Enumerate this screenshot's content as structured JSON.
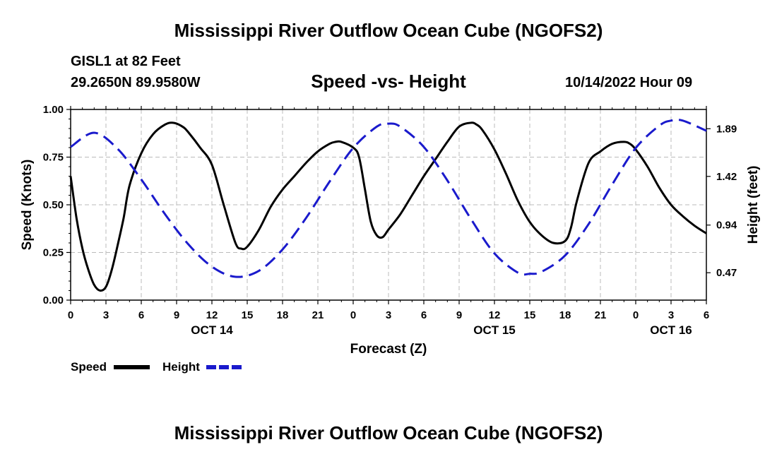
{
  "page": {
    "title_top": "Mississippi River Outflow Ocean Cube (NGOFS2)",
    "title_bottom": "Mississippi River Outflow Ocean Cube (NGOFS2)",
    "station": "GISL1 at 82 Feet",
    "latlon": "29.2650N  89.9580W",
    "subtitle": "Speed -vs- Height",
    "datetime": "10/14/2022 Hour 09"
  },
  "legend": {
    "speed_label": "Speed",
    "height_label": "Height"
  },
  "colors": {
    "speed": "#000000",
    "height": "#1a1acc",
    "grid": "#bbbbbb"
  },
  "chart_data": {
    "type": "line",
    "title": "Speed -vs- Height",
    "xlabel": "Forecast (Z)",
    "ylabel": "Speed (Knots)",
    "y2label": "Height (feet)",
    "xlim": [
      0,
      54
    ],
    "ylim": [
      0,
      1.0
    ],
    "y2lim": [
      0.2,
      2.08
    ],
    "x_ticks": [
      0,
      3,
      6,
      9,
      12,
      15,
      18,
      21,
      24,
      27,
      30,
      33,
      36,
      39,
      42,
      45,
      48,
      51,
      54
    ],
    "x_tick_labels": [
      "0",
      "3",
      "6",
      "9",
      "12",
      "15",
      "18",
      "21",
      "0",
      "3",
      "6",
      "9",
      "12",
      "15",
      "18",
      "21",
      "0",
      "3",
      "6"
    ],
    "y_ticks": [
      0,
      0.25,
      0.5,
      0.75,
      1.0
    ],
    "y_tick_labels": [
      "0.00",
      "0.25",
      "0.50",
      "0.75",
      "1.00"
    ],
    "y2_ticks": [
      0.47,
      0.94,
      1.42,
      1.89
    ],
    "y2_tick_labels": [
      "0.47",
      "0.94",
      "1.42",
      "1.89"
    ],
    "date_labels": [
      {
        "x": 12,
        "label": "OCT 14"
      },
      {
        "x": 36,
        "label": "OCT 15"
      },
      {
        "x": 51,
        "label": "OCT 16"
      }
    ],
    "grid": true,
    "legend_position": "bottom-left",
    "series": [
      {
        "name": "Speed",
        "axis": "left",
        "style": "solid",
        "x": [
          0,
          0.5,
          1,
          1.5,
          2,
          2.5,
          3,
          3.5,
          4,
          4.5,
          5,
          6,
          7,
          8,
          8.7,
          9.5,
          10,
          11,
          12,
          13,
          14,
          14.5,
          15,
          16,
          17,
          18,
          19,
          20,
          21,
          22,
          22.5,
          23,
          24,
          24.5,
          25,
          25.5,
          26,
          26.5,
          27,
          28,
          29,
          30,
          31,
          32,
          33,
          34,
          34.5,
          35,
          36,
          37,
          38,
          39,
          40,
          41,
          42,
          42.5,
          43,
          44,
          45,
          46,
          47,
          47.5,
          48,
          49,
          50,
          51,
          52,
          53,
          54
        ],
        "values": [
          0.65,
          0.43,
          0.27,
          0.16,
          0.08,
          0.05,
          0.07,
          0.16,
          0.29,
          0.43,
          0.6,
          0.77,
          0.87,
          0.92,
          0.93,
          0.91,
          0.88,
          0.8,
          0.71,
          0.5,
          0.3,
          0.27,
          0.28,
          0.37,
          0.49,
          0.58,
          0.65,
          0.72,
          0.78,
          0.82,
          0.83,
          0.83,
          0.8,
          0.75,
          0.58,
          0.41,
          0.34,
          0.33,
          0.37,
          0.45,
          0.55,
          0.65,
          0.74,
          0.83,
          0.91,
          0.93,
          0.92,
          0.89,
          0.79,
          0.66,
          0.52,
          0.41,
          0.34,
          0.3,
          0.31,
          0.38,
          0.52,
          0.72,
          0.78,
          0.82,
          0.83,
          0.82,
          0.79,
          0.7,
          0.59,
          0.5,
          0.44,
          0.39,
          0.35
        ]
      },
      {
        "name": "Height",
        "axis": "right",
        "style": "dashed",
        "x": [
          0,
          2,
          4,
          6,
          8,
          10,
          12,
          14,
          16,
          18,
          20,
          22,
          24,
          26,
          27,
          28,
          30,
          32,
          34,
          36,
          38,
          39,
          40,
          42,
          44,
          46,
          48,
          50,
          51,
          52,
          54
        ],
        "values": [
          1.71,
          1.85,
          1.69,
          1.39,
          1.05,
          0.75,
          0.53,
          0.43,
          0.49,
          0.7,
          1.01,
          1.37,
          1.7,
          1.91,
          1.94,
          1.91,
          1.71,
          1.38,
          1.0,
          0.66,
          0.47,
          0.46,
          0.48,
          0.64,
          0.95,
          1.34,
          1.7,
          1.92,
          1.97,
          1.97,
          1.87
        ]
      }
    ]
  }
}
